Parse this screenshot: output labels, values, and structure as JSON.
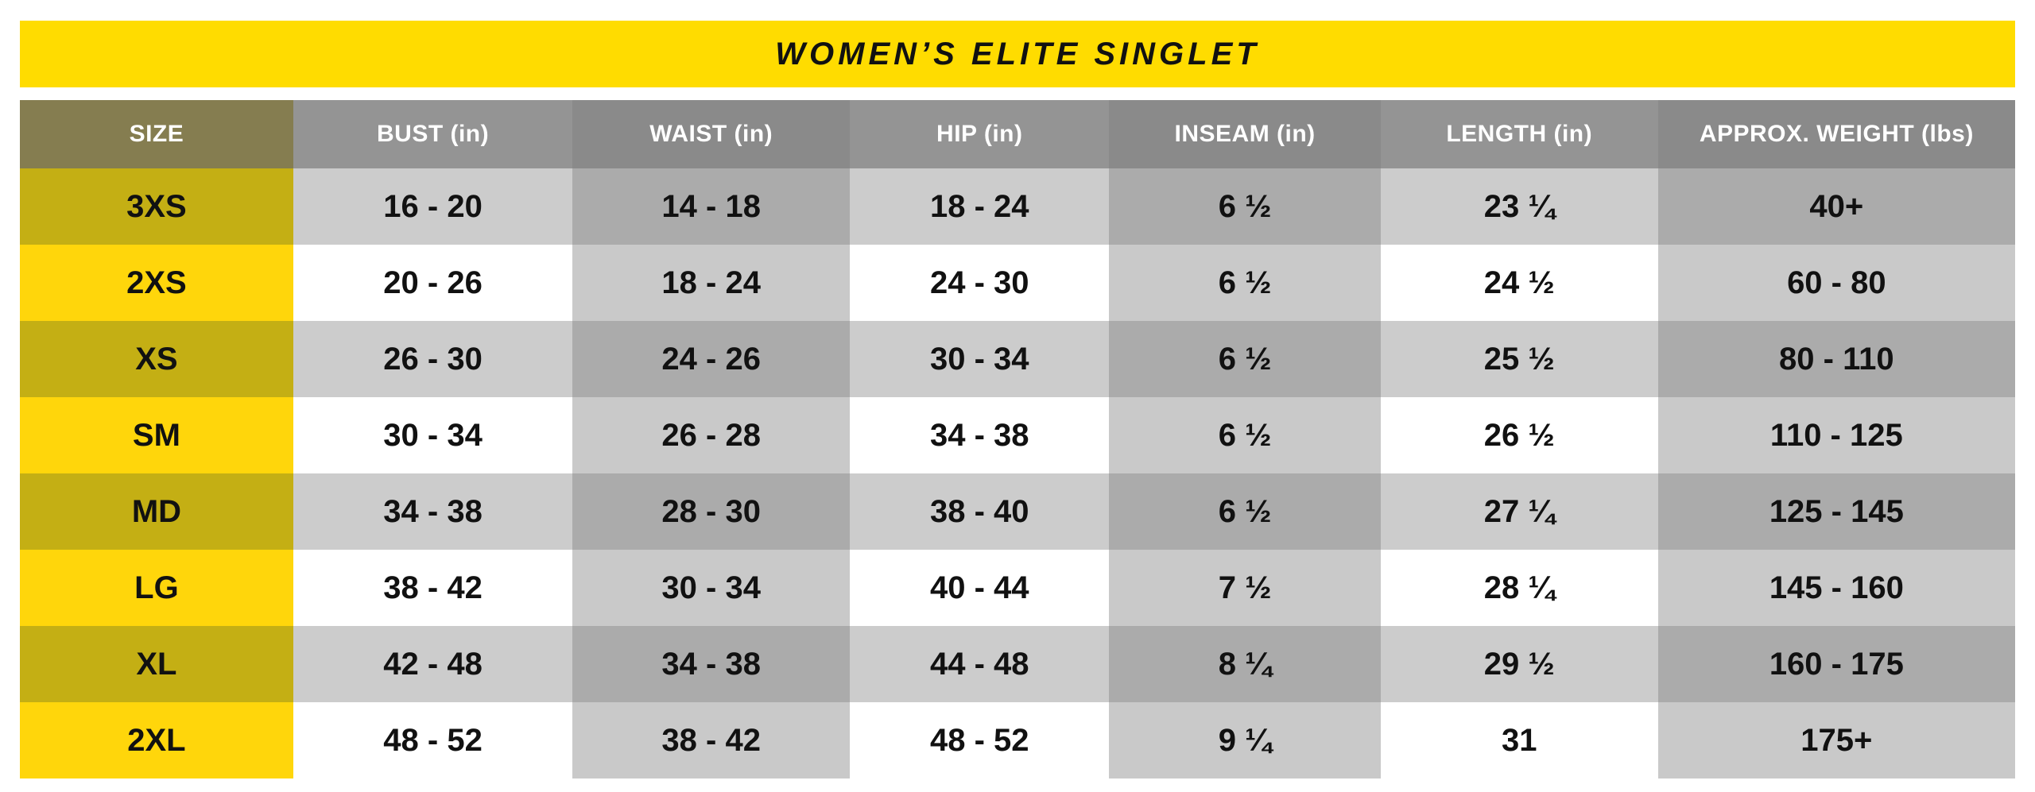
{
  "title": "WOMEN’S ELITE SINGLET",
  "colors": {
    "title_bg": "#FFDC00",
    "header_size_bg": "#857D50",
    "header_light_bg": "#949494",
    "header_dark_bg": "#8A8A8A",
    "row_odd_size_bg": "#C4AF14",
    "row_even_size_bg": "#FFD60B",
    "row_odd_light_bg": "#CCCCCC",
    "row_odd_dark_bg": "#ABABAB",
    "row_even_light_bg": "#FFFFFF",
    "row_even_dark_bg": "#C9C9C9",
    "header_text": "#FFFFFF",
    "body_text": "#111111"
  },
  "chart_data": {
    "type": "table",
    "title": "WOMEN’S ELITE SINGLET",
    "columns": [
      "SIZE",
      "BUST (in)",
      "WAIST (in)",
      "HIP (in)",
      "INSEAM (in)",
      "LENGTH (in)",
      "APPROX. WEIGHT (lbs)"
    ],
    "column_widths_pct": [
      13.7,
      14.0,
      13.9,
      13.0,
      13.6,
      13.9,
      17.9
    ],
    "rows": [
      [
        "3XS",
        "16 - 20",
        "14 - 18",
        "18 - 24",
        "6 ½",
        "23 ¼",
        "40+"
      ],
      [
        "2XS",
        "20 - 26",
        "18 - 24",
        "24 - 30",
        "6 ½",
        "24 ½",
        "60 - 80"
      ],
      [
        "XS",
        "26 - 30",
        "24 - 26",
        "30 - 34",
        "6 ½",
        "25 ½",
        "80 - 110"
      ],
      [
        "SM",
        "30 - 34",
        "26 - 28",
        "34 - 38",
        "6 ½",
        "26 ½",
        "110 - 125"
      ],
      [
        "MD",
        "34 - 38",
        "28 - 30",
        "38 - 40",
        "6 ½",
        "27 ¼",
        "125 - 145"
      ],
      [
        "LG",
        "38 - 42",
        "30 - 34",
        "40 - 44",
        "7 ½",
        "28 ¼",
        "145 - 160"
      ],
      [
        "XL",
        "42 - 48",
        "34 - 38",
        "44 - 48",
        "8 ¼",
        "29 ½",
        "160 - 175"
      ],
      [
        "2XL",
        "48 - 52",
        "38 - 42",
        "48 - 52",
        "9 ¼",
        "31",
        "175+"
      ]
    ]
  }
}
